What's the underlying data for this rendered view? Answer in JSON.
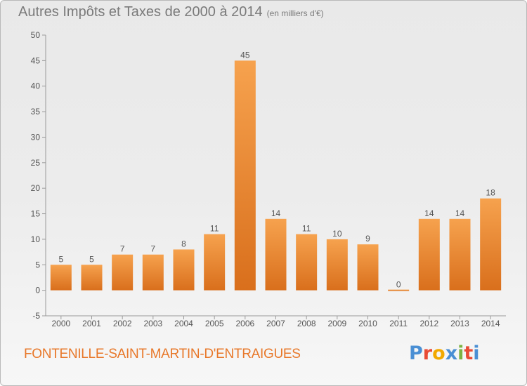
{
  "title": "Autres Impôts et Taxes de 2000 à 2014",
  "unit_note": "(en milliers d'€)",
  "commune": "FONTENILLE-SAINT-MARTIN-D'ENTRAIGUES",
  "logo": {
    "text": "Proxiti",
    "letter_colors": [
      "#4a8fd4",
      "#e94b35",
      "#f2a900",
      "#4a8fd4",
      "#7cb342",
      "#e94b35",
      "#4a8fd4"
    ]
  },
  "chart_data": {
    "type": "bar",
    "categories": [
      "2000",
      "2001",
      "2002",
      "2003",
      "2004",
      "2005",
      "2006",
      "2007",
      "2008",
      "2009",
      "2010",
      "2011",
      "2012",
      "2013",
      "2014"
    ],
    "values": [
      5,
      5,
      7,
      7,
      8,
      11,
      45,
      14,
      11,
      10,
      9,
      0,
      14,
      14,
      18
    ],
    "data_labels": [
      "5",
      "5",
      "7",
      "7",
      "8",
      "11",
      "45",
      "14",
      "11",
      "10",
      "9",
      "0",
      "14",
      "14",
      "18"
    ],
    "ylim": [
      -5,
      50
    ],
    "yticks": [
      -5,
      0,
      5,
      10,
      15,
      20,
      25,
      30,
      35,
      40,
      45,
      50
    ],
    "grid": false,
    "colors": {
      "bar_top": "#f6a24e",
      "bar_bottom": "#d96f1c"
    }
  }
}
